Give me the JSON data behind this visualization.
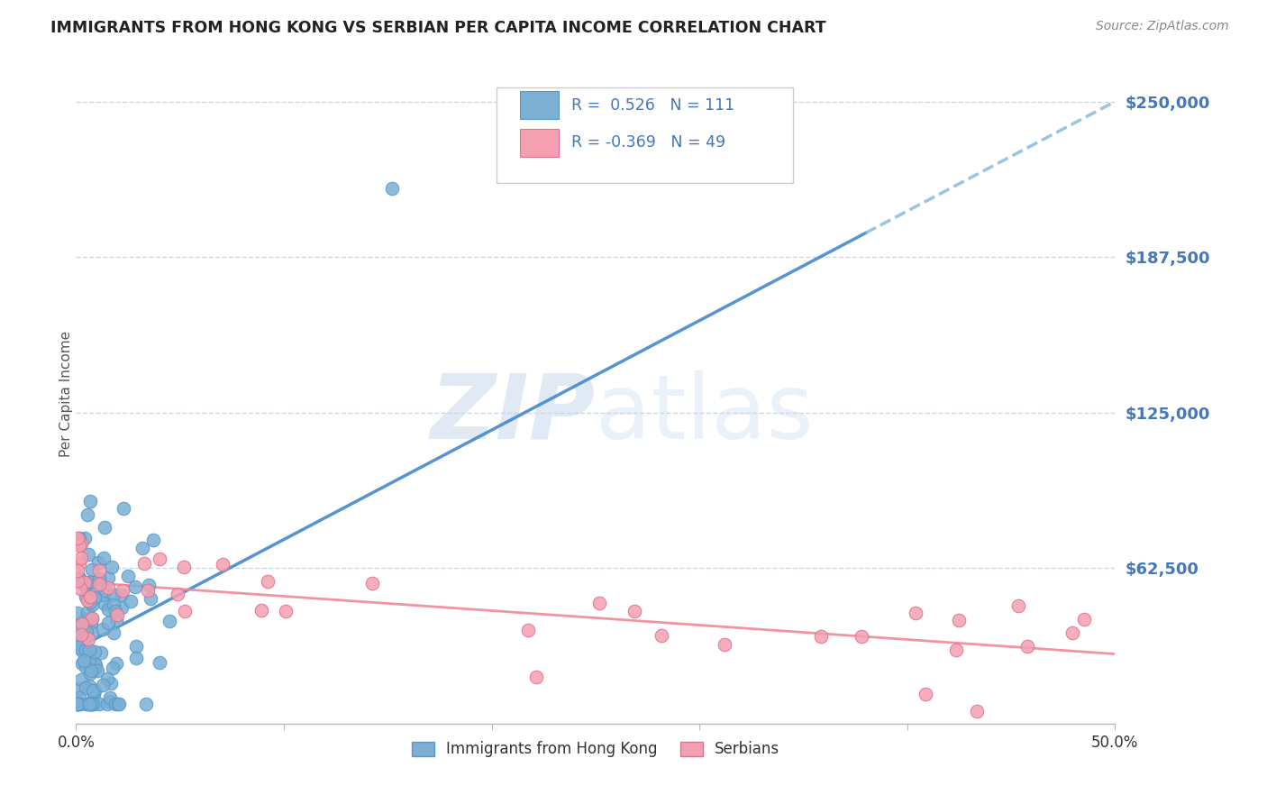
{
  "title": "IMMIGRANTS FROM HONG KONG VS SERBIAN PER CAPITA INCOME CORRELATION CHART",
  "source": "Source: ZipAtlas.com",
  "ylabel": "Per Capita Income",
  "yticks": [
    0,
    62500,
    125000,
    187500,
    250000
  ],
  "ytick_labels": [
    "",
    "$62,500",
    "$125,000",
    "$187,500",
    "$250,000"
  ],
  "xlim": [
    0.0,
    0.5
  ],
  "ylim": [
    0,
    265000
  ],
  "blue_R": 0.526,
  "blue_N": 111,
  "pink_R": -0.369,
  "pink_N": 49,
  "blue_scatter_color": "#7BAFD4",
  "blue_scatter_edge": "#5599CC",
  "pink_scatter_color": "#F4A0B0",
  "pink_scatter_edge": "#E07090",
  "line_blue_solid": "#4488CC",
  "line_blue_dash": "#88BBDD",
  "line_pink": "#F08898",
  "watermark_color": "#C8D8EC",
  "background_color": "#FFFFFF",
  "title_color": "#222222",
  "tick_color": "#4477BB",
  "grid_color": "#C8D8E8",
  "source_color": "#888888"
}
